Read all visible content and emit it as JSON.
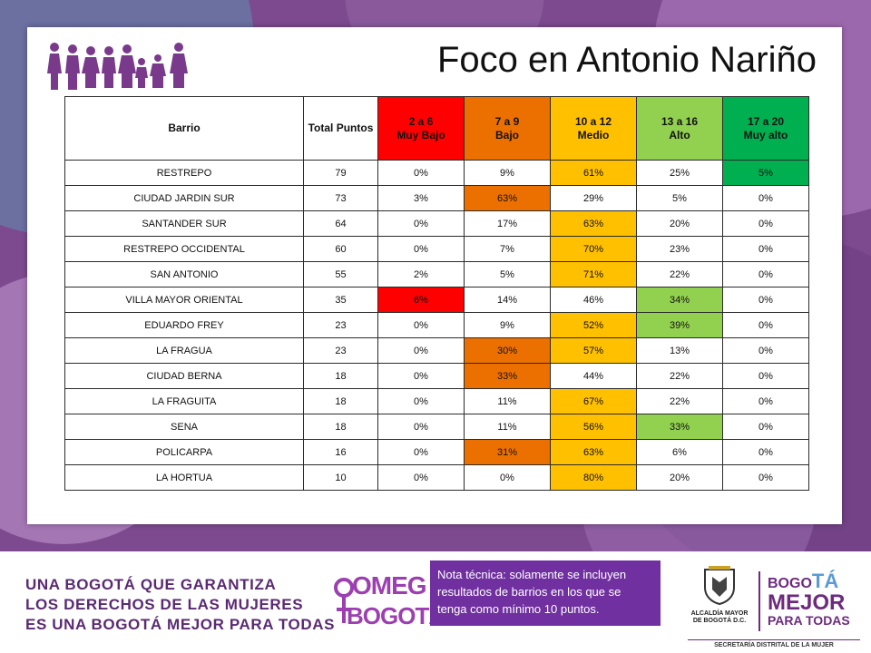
{
  "title": "Foco en Antonio Nariño",
  "table": {
    "headers": {
      "barrio": "Barrio",
      "total": "Total Puntos",
      "levels": [
        {
          "range": "2 a 6",
          "label": "Muy Bajo",
          "color": "#ff0000"
        },
        {
          "range": "7 a 9",
          "label": "Bajo",
          "color": "#ec7000"
        },
        {
          "range": "10 a 12",
          "label": "Medio",
          "color": "#ffc000"
        },
        {
          "range": "13 a 16",
          "label": "Alto",
          "color": "#92d050"
        },
        {
          "range": "17 a 20",
          "label": "Muy alto",
          "color": "#00b050"
        }
      ]
    },
    "rows": [
      {
        "barrio": "RESTREPO",
        "total": "79",
        "v": [
          "0%",
          "9%",
          "61%",
          "25%",
          "5%"
        ],
        "h": [
          "",
          "",
          "c-yellow",
          "",
          "c-green"
        ]
      },
      {
        "barrio": "CIUDAD JARDIN SUR",
        "total": "73",
        "v": [
          "3%",
          "63%",
          "29%",
          "5%",
          "0%"
        ],
        "h": [
          "",
          "c-orange",
          "",
          "",
          ""
        ]
      },
      {
        "barrio": "SANTANDER SUR",
        "total": "64",
        "v": [
          "0%",
          "17%",
          "63%",
          "20%",
          "0%"
        ],
        "h": [
          "",
          "",
          "c-yellow",
          "",
          ""
        ]
      },
      {
        "barrio": "RESTREPO OCCIDENTAL",
        "total": "60",
        "v": [
          "0%",
          "7%",
          "70%",
          "23%",
          "0%"
        ],
        "h": [
          "",
          "",
          "c-yellow",
          "",
          ""
        ]
      },
      {
        "barrio": "SAN ANTONIO",
        "total": "55",
        "v": [
          "2%",
          "5%",
          "71%",
          "22%",
          "0%"
        ],
        "h": [
          "",
          "",
          "c-yellow",
          "",
          ""
        ]
      },
      {
        "barrio": "VILLA MAYOR ORIENTAL",
        "total": "35",
        "v": [
          "6%",
          "14%",
          "46%",
          "34%",
          "0%"
        ],
        "h": [
          "c-red",
          "",
          "",
          "c-lgreen",
          ""
        ]
      },
      {
        "barrio": "EDUARDO FREY",
        "total": "23",
        "v": [
          "0%",
          "9%",
          "52%",
          "39%",
          "0%"
        ],
        "h": [
          "",
          "",
          "c-yellow",
          "c-lgreen",
          ""
        ]
      },
      {
        "barrio": "LA FRAGUA",
        "total": "23",
        "v": [
          "0%",
          "30%",
          "57%",
          "13%",
          "0%"
        ],
        "h": [
          "",
          "c-orange",
          "c-yellow",
          "",
          ""
        ]
      },
      {
        "barrio": "CIUDAD BERNA",
        "total": "18",
        "v": [
          "0%",
          "33%",
          "44%",
          "22%",
          "0%"
        ],
        "h": [
          "",
          "c-orange",
          "",
          "",
          ""
        ]
      },
      {
        "barrio": "LA FRAGUITA",
        "total": "18",
        "v": [
          "0%",
          "11%",
          "67%",
          "22%",
          "0%"
        ],
        "h": [
          "",
          "",
          "c-yellow",
          "",
          ""
        ]
      },
      {
        "barrio": "SENA",
        "total": "18",
        "v": [
          "0%",
          "11%",
          "56%",
          "33%",
          "0%"
        ],
        "h": [
          "",
          "",
          "c-yellow",
          "c-lgreen",
          ""
        ]
      },
      {
        "barrio": "POLICARPA",
        "total": "16",
        "v": [
          "0%",
          "31%",
          "63%",
          "6%",
          "0%"
        ],
        "h": [
          "",
          "c-orange",
          "c-yellow",
          "",
          ""
        ]
      },
      {
        "barrio": "LA HORTUA",
        "total": "10",
        "v": [
          "0%",
          "0%",
          "80%",
          "20%",
          "0%"
        ],
        "h": [
          "",
          "",
          "c-yellow",
          "",
          ""
        ]
      }
    ]
  },
  "footer": {
    "slogan": [
      "UNA BOGOTÁ QUE GARANTIZA",
      "LOS DERECHOS DE LAS MUJERES",
      "ES UNA BOGOTÁ MEJOR PARA TODAS"
    ],
    "omeg_top": "OMEG",
    "omeg_bottom": "BOGOTÁ",
    "note": "Nota técnica: solamente se incluyen resultados de barrios en los que se tenga como mínimo 10 puntos.",
    "alcaldia": [
      "ALCALDÍA MAYOR",
      "DE BOGOTÁ D.C."
    ],
    "bmpt": {
      "line1a": "BO",
      "line1b": "GO",
      "line1c": "TÁ",
      "line2": "MEJOR",
      "line3": "PARA TODAS"
    },
    "secretaria": "SECRETARÍA DISTRITAL DE LA MUJER",
    "brand_color": "#6d2a7e"
  }
}
